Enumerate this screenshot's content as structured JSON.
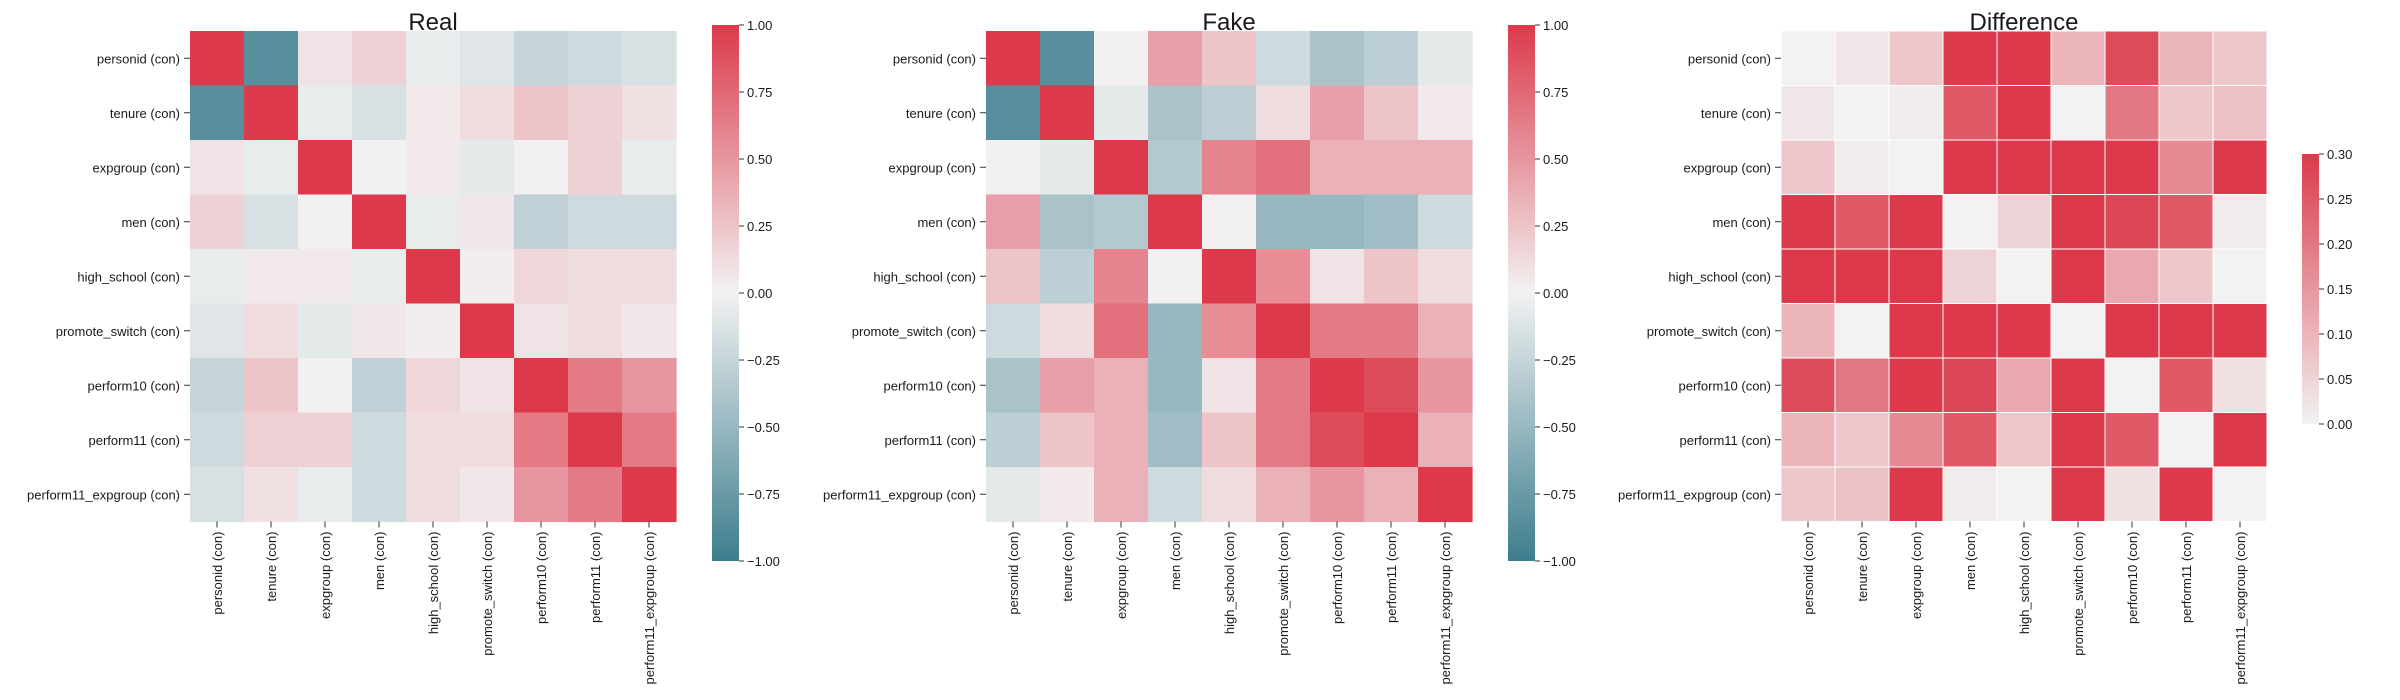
{
  "chart_data": [
    {
      "type": "heatmap",
      "title": "Real",
      "row_labels": [
        "personid (con)",
        "tenure (con)",
        "expgroup (con)",
        "men (con)",
        "high_school (con)",
        "promote_switch (con)",
        "perform10 (con)",
        "perform11 (con)",
        "perform11_expgroup (con)"
      ],
      "col_labels": [
        "personid (con)",
        "tenure (con)",
        "expgroup (con)",
        "men (con)",
        "high_school (con)",
        "promote_switch (con)",
        "perform10 (con)",
        "perform11 (con)",
        "perform11_expgroup (con)"
      ],
      "values": [
        [
          1.0,
          -0.85,
          0.08,
          0.18,
          -0.05,
          -0.1,
          -0.25,
          -0.2,
          -0.15
        ],
        [
          -0.85,
          1.0,
          -0.05,
          -0.15,
          0.05,
          0.12,
          0.25,
          0.18,
          0.1
        ],
        [
          0.08,
          -0.05,
          1.0,
          0.01,
          0.05,
          -0.08,
          0.01,
          0.18,
          -0.05
        ],
        [
          0.18,
          -0.15,
          0.01,
          1.0,
          -0.05,
          0.06,
          -0.28,
          -0.2,
          -0.2
        ],
        [
          -0.05,
          0.05,
          0.05,
          -0.05,
          1.0,
          0.02,
          0.15,
          0.12,
          0.12
        ],
        [
          -0.1,
          0.12,
          -0.08,
          0.06,
          0.02,
          1.0,
          0.08,
          0.12,
          0.06
        ],
        [
          -0.25,
          0.25,
          0.01,
          -0.28,
          0.15,
          0.08,
          1.0,
          0.65,
          0.5
        ],
        [
          -0.2,
          0.18,
          0.18,
          -0.2,
          0.12,
          0.12,
          0.65,
          1.0,
          0.65
        ],
        [
          -0.15,
          0.1,
          -0.05,
          -0.2,
          0.12,
          0.06,
          0.5,
          0.65,
          1.0
        ]
      ],
      "colorbar": {
        "min": -1.0,
        "max": 1.0,
        "ticks": [
          "1.00",
          "0.75",
          "0.50",
          "0.25",
          "0.00",
          "−0.25",
          "−0.50",
          "−0.75",
          "−1.00"
        ]
      },
      "colormap": {
        "low": "#3d7d8d",
        "mid": "#f2f2f2",
        "high": "#dc3a4b"
      },
      "grid_lines": false
    },
    {
      "type": "heatmap",
      "title": "Fake",
      "row_labels": [
        "personid (con)",
        "tenure (con)",
        "expgroup (con)",
        "men (con)",
        "high_school (con)",
        "promote_switch (con)",
        "perform10 (con)",
        "perform11 (con)",
        "perform11_expgroup (con)"
      ],
      "col_labels": [
        "personid (con)",
        "tenure (con)",
        "expgroup (con)",
        "men (con)",
        "high_school (con)",
        "promote_switch (con)",
        "perform10 (con)",
        "perform11 (con)",
        "perform11_expgroup (con)"
      ],
      "values": [
        [
          1.0,
          -0.85,
          0.01,
          0.45,
          0.25,
          -0.2,
          -0.4,
          -0.3,
          -0.08
        ],
        [
          -0.85,
          1.0,
          -0.08,
          -0.4,
          -0.3,
          0.12,
          0.45,
          0.25,
          0.05
        ],
        [
          0.01,
          -0.08,
          1.0,
          -0.35,
          0.6,
          0.7,
          0.35,
          0.35,
          0.35
        ],
        [
          0.45,
          -0.4,
          -0.35,
          1.0,
          0.01,
          -0.5,
          -0.5,
          -0.45,
          -0.2
        ],
        [
          0.25,
          -0.3,
          0.6,
          0.01,
          1.0,
          0.55,
          0.08,
          0.25,
          0.12
        ],
        [
          -0.2,
          0.12,
          0.7,
          -0.5,
          0.55,
          1.0,
          0.65,
          0.65,
          0.35
        ],
        [
          -0.4,
          0.45,
          0.35,
          -0.5,
          0.08,
          0.65,
          1.0,
          0.9,
          0.5
        ],
        [
          -0.3,
          0.25,
          0.35,
          -0.45,
          0.25,
          0.65,
          0.9,
          1.0,
          0.35
        ],
        [
          -0.08,
          0.05,
          0.35,
          -0.2,
          0.12,
          0.35,
          0.5,
          0.35,
          1.0
        ]
      ],
      "colorbar": {
        "min": -1.0,
        "max": 1.0,
        "ticks": [
          "1.00",
          "0.75",
          "0.50",
          "0.25",
          "0.00",
          "−0.25",
          "−0.50",
          "−0.75",
          "−1.00"
        ]
      },
      "colormap": {
        "low": "#3d7d8d",
        "mid": "#f2f2f2",
        "high": "#dc3a4b"
      },
      "grid_lines": false
    },
    {
      "type": "heatmap",
      "title": "Difference",
      "row_labels": [
        "personid (con)",
        "tenure (con)",
        "expgroup (con)",
        "men (con)",
        "high_school (con)",
        "promote_switch (con)",
        "perform10 (con)",
        "perform11 (con)",
        "perform11_expgroup (con)"
      ],
      "col_labels": [
        "personid (con)",
        "tenure (con)",
        "expgroup (con)",
        "men (con)",
        "high_school (con)",
        "promote_switch (con)",
        "perform10 (con)",
        "perform11 (con)",
        "perform11_expgroup (con)"
      ],
      "values": [
        [
          0.0,
          0.02,
          0.07,
          0.3,
          0.3,
          0.1,
          0.27,
          0.1,
          0.07
        ],
        [
          0.02,
          0.0,
          0.01,
          0.25,
          0.3,
          0.0,
          0.2,
          0.07,
          0.08
        ],
        [
          0.07,
          0.01,
          0.0,
          0.3,
          0.3,
          0.3,
          0.3,
          0.17,
          0.3
        ],
        [
          0.3,
          0.25,
          0.3,
          0.0,
          0.05,
          0.3,
          0.28,
          0.25,
          0.01
        ],
        [
          0.3,
          0.3,
          0.3,
          0.05,
          0.0,
          0.3,
          0.12,
          0.07,
          0.0
        ],
        [
          0.1,
          0.0,
          0.3,
          0.3,
          0.3,
          0.0,
          0.3,
          0.3,
          0.3
        ],
        [
          0.27,
          0.2,
          0.3,
          0.28,
          0.12,
          0.3,
          0.0,
          0.25,
          0.03
        ],
        [
          0.1,
          0.07,
          0.17,
          0.25,
          0.07,
          0.3,
          0.25,
          0.0,
          0.3
        ],
        [
          0.07,
          0.08,
          0.3,
          0.01,
          0.0,
          0.3,
          0.03,
          0.3,
          0.0
        ]
      ],
      "colorbar": {
        "min": 0.0,
        "max": 0.3,
        "ticks": [
          "0.30",
          "0.25",
          "0.20",
          "0.15",
          "0.10",
          "0.05",
          "0.00"
        ]
      },
      "colormap": {
        "low": "#f2f2f2",
        "high": "#dc3a4b"
      },
      "grid_lines": true
    }
  ]
}
